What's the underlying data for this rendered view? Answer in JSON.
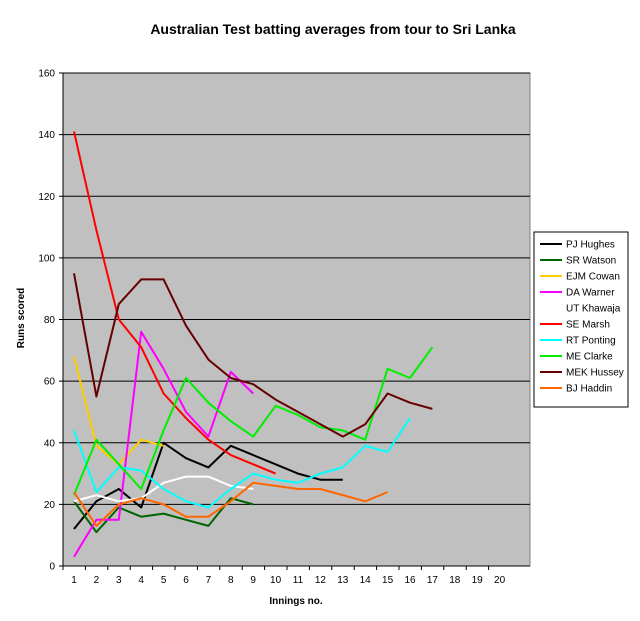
{
  "chart_data": {
    "type": "line",
    "title": "Australian Test batting averages from tour to Sri Lanka",
    "xlabel": "Innings no.",
    "ylabel": "Runs scored",
    "xlim": [
      1,
      20
    ],
    "ylim": [
      0,
      160
    ],
    "x_ticks": [
      "1",
      "2",
      "3",
      "4",
      "5",
      "6",
      "7",
      "8",
      "9",
      "10",
      "11",
      "12",
      "13",
      "14",
      "15",
      "16",
      "17",
      "18",
      "19",
      "20"
    ],
    "y_ticks": [
      "0",
      "20",
      "40",
      "60",
      "80",
      "100",
      "120",
      "140",
      "160"
    ],
    "grid": "horizontal",
    "legend_position": "right",
    "plot_background": "#c0c0c0",
    "series": [
      {
        "name": "PJ Hughes",
        "color": "#000000",
        "x": [
          1,
          2,
          3,
          4,
          5,
          6,
          7,
          8,
          9,
          10,
          11,
          12,
          13
        ],
        "values": [
          12,
          21,
          25,
          19,
          40,
          35,
          32,
          39,
          36,
          33,
          30,
          28,
          28
        ]
      },
      {
        "name": "SR Watson",
        "color": "#006400",
        "x": [
          1,
          2,
          3,
          4,
          5,
          6,
          7,
          8,
          9
        ],
        "values": [
          21,
          11,
          19,
          16,
          17,
          15,
          13,
          22,
          20
        ]
      },
      {
        "name": "EJM Cowan",
        "color": "#ffcc00",
        "x": [
          1,
          2,
          3,
          4,
          5
        ],
        "values": [
          68,
          39,
          33,
          41,
          39
        ]
      },
      {
        "name": "DA Warner",
        "color": "#ff00ff",
        "x": [
          1,
          2,
          3,
          4,
          5,
          6,
          7,
          8,
          9
        ],
        "values": [
          3,
          15,
          15,
          76,
          64,
          50,
          42,
          63,
          56
        ]
      },
      {
        "name": "UT Khawaja",
        "color": "#ffffff",
        "x": [
          1,
          2,
          3,
          4,
          5,
          6,
          7,
          8,
          9
        ],
        "values": [
          21,
          23,
          21,
          22,
          27,
          29,
          29,
          26,
          25
        ]
      },
      {
        "name": "SE Marsh",
        "color": "#ff0000",
        "x": [
          1,
          2,
          3,
          4,
          5,
          6,
          7,
          8,
          9,
          10
        ],
        "values": [
          141,
          109,
          80,
          71,
          56,
          48,
          41,
          36,
          33,
          30
        ]
      },
      {
        "name": "RT Ponting",
        "color": "#00ffff",
        "x": [
          1,
          2,
          3,
          4,
          5,
          6,
          7,
          8,
          9,
          10,
          11,
          12,
          13,
          14,
          15,
          16
        ],
        "values": [
          44,
          24,
          32,
          31,
          25,
          21,
          19,
          25,
          30,
          28,
          27,
          30,
          32,
          39,
          37,
          48
        ]
      },
      {
        "name": "ME Clarke",
        "color": "#00ee00",
        "x": [
          1,
          2,
          3,
          4,
          5,
          6,
          7,
          8,
          9,
          10,
          11,
          12,
          13,
          14,
          15,
          16,
          17
        ],
        "values": [
          23,
          41,
          33,
          25,
          44,
          61,
          53,
          47,
          42,
          52,
          49,
          45,
          44,
          41,
          64,
          61,
          71
        ]
      },
      {
        "name": "MEK  Hussey",
        "color": "#660000",
        "x": [
          1,
          2,
          3,
          4,
          5,
          6,
          7,
          8,
          9,
          10,
          11,
          12,
          13,
          14,
          15,
          16,
          17
        ],
        "values": [
          95,
          55,
          85,
          93,
          93,
          78,
          67,
          61,
          59,
          54,
          50,
          46,
          42,
          46,
          56,
          53,
          51
        ]
      },
      {
        "name": "BJ Haddin",
        "color": "#ff6600",
        "x": [
          1,
          2,
          3,
          4,
          5,
          6,
          7,
          8,
          9,
          10,
          11,
          12,
          13,
          14,
          15
        ],
        "values": [
          24,
          13,
          20,
          22,
          20,
          16,
          16,
          21,
          27,
          26,
          25,
          25,
          23,
          21,
          24
        ]
      }
    ]
  }
}
